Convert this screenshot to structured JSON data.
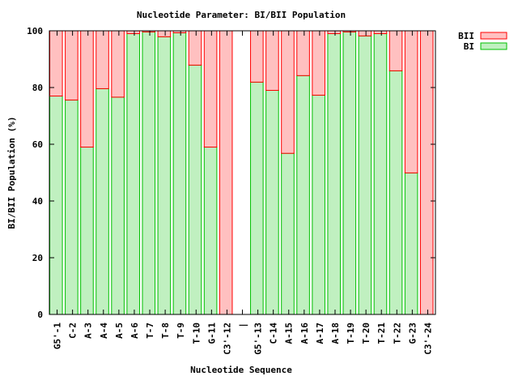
{
  "chart_data": {
    "type": "bar",
    "stacked": true,
    "title": "Nucleotide Parameter: BI/BII Population",
    "xlabel": "Nucleotide Sequence",
    "ylabel": "BI/BII Population (%)",
    "ylim": [
      0,
      100
    ],
    "yticks": [
      0,
      20,
      40,
      60,
      80,
      100
    ],
    "grid": false,
    "legend_position": "top-right outside",
    "categories": [
      "G5'-1",
      "C-2",
      "A-3",
      "A-4",
      "A-5",
      "A-6",
      "T-7",
      "T-8",
      "T-9",
      "T-10",
      "G-11",
      "C3'-12",
      "|",
      "G5'-13",
      "C-14",
      "A-15",
      "A-16",
      "A-17",
      "A-18",
      "T-19",
      "T-20",
      "T-21",
      "T-22",
      "G-23",
      "C3'-24"
    ],
    "series": [
      {
        "name": "BI",
        "fill": "#c0f0c0",
        "stroke": "#00c000",
        "values": [
          77.0,
          75.6,
          59.0,
          79.6,
          76.6,
          99.0,
          99.6,
          97.9,
          99.3,
          87.9,
          59.0,
          0,
          null,
          81.9,
          79.0,
          56.8,
          84.2,
          77.3,
          99.0,
          99.6,
          98.2,
          99.0,
          85.9,
          49.9,
          0
        ]
      },
      {
        "name": "BII",
        "fill": "#ffc0c0",
        "stroke": "#ff0000",
        "values": [
          23.0,
          24.4,
          41.0,
          20.4,
          23.4,
          1.0,
          0.4,
          2.1,
          0.7,
          12.1,
          41.0,
          100,
          null,
          18.1,
          21.0,
          43.2,
          15.8,
          22.7,
          1.0,
          0.4,
          1.8,
          1.0,
          14.1,
          50.1,
          100
        ]
      }
    ]
  }
}
